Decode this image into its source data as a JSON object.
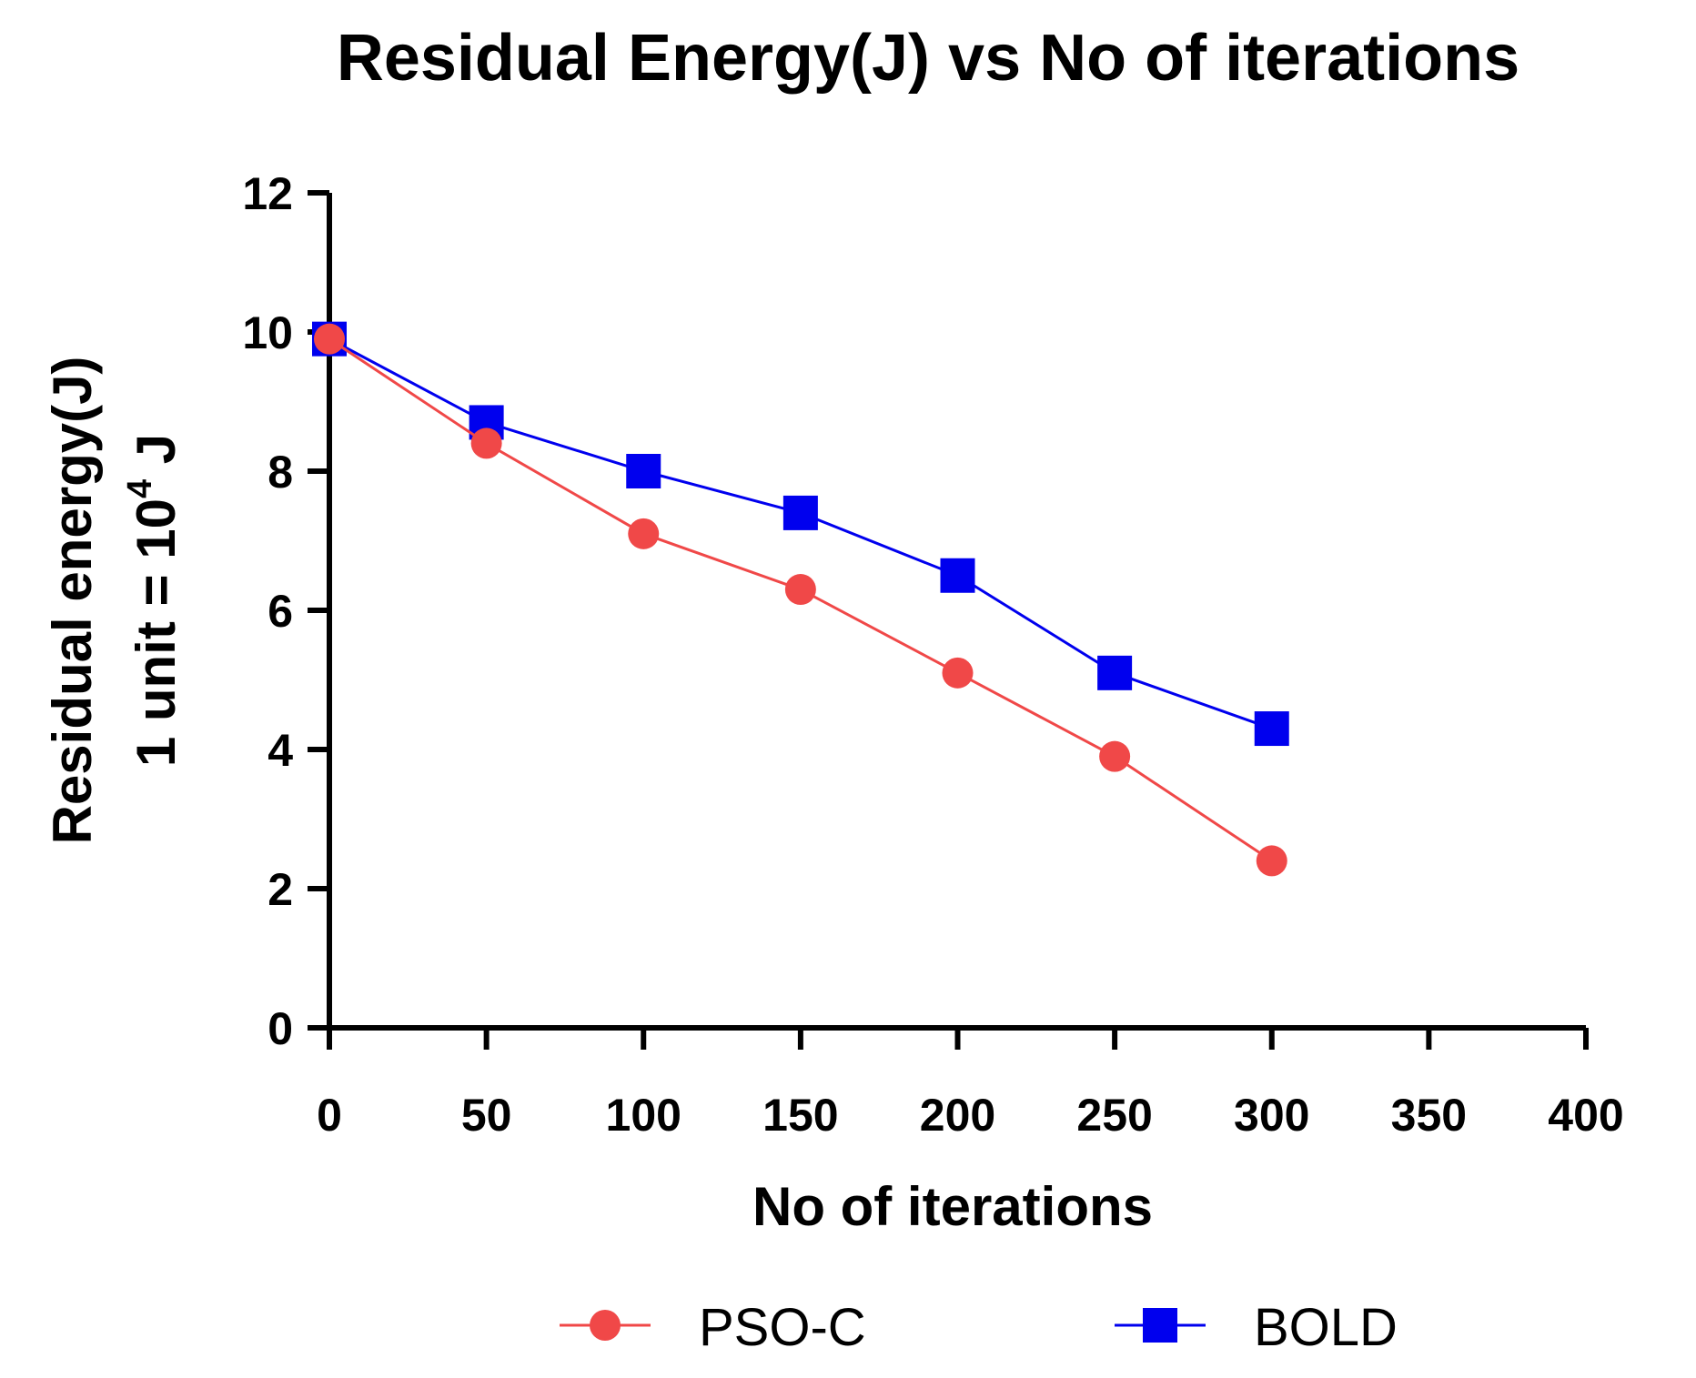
{
  "chart_data": {
    "type": "line",
    "title": "Residual Energy(J) vs No of iterations",
    "xlabel": "No of iterations",
    "ylabel_line1": "Residual energy(J)",
    "ylabel_line2_prefix": "1 unit = 10",
    "ylabel_line2_exponent": "4",
    "ylabel_line2_suffix": " J",
    "xlim": [
      0,
      400
    ],
    "ylim": [
      0,
      12
    ],
    "xticks": [
      0,
      50,
      100,
      150,
      200,
      250,
      300,
      350,
      400
    ],
    "yticks": [
      0,
      2,
      4,
      6,
      8,
      10,
      12
    ],
    "grid": false,
    "legend_position": "bottom-center",
    "series": [
      {
        "name": "PSO-C",
        "marker": "circle",
        "color": "#f04848",
        "x": [
          0,
          50,
          100,
          150,
          200,
          250,
          300
        ],
        "y": [
          9.9,
          8.4,
          7.1,
          6.3,
          5.1,
          3.9,
          2.4
        ]
      },
      {
        "name": "BOLD",
        "marker": "square",
        "color": "#0000ee",
        "x": [
          0,
          50,
          100,
          150,
          200,
          250,
          300
        ],
        "y": [
          9.9,
          8.7,
          8.0,
          7.4,
          6.5,
          5.1,
          4.3
        ]
      }
    ]
  }
}
